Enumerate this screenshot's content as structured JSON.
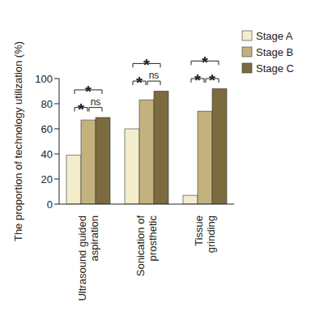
{
  "chart_data": {
    "type": "bar",
    "y_label": "The proportion of technology utilization (%)",
    "categories": [
      "Ultrasound guided aspiration",
      "Sonication of prosthetic",
      "Tissue grinding"
    ],
    "series": [
      {
        "name": "Stage A",
        "color": "#f3edcb",
        "values": [
          39,
          60,
          7
        ]
      },
      {
        "name": "Stage B",
        "color": "#c3b27e",
        "values": [
          67,
          83,
          74
        ]
      },
      {
        "name": "Stage C",
        "color": "#7c6b3f",
        "values": [
          69,
          90,
          92
        ]
      }
    ],
    "ylim": [
      0,
      100
    ],
    "yticks": [
      0,
      20,
      40,
      60,
      80,
      100
    ],
    "grid": false,
    "legend": "upper right",
    "annotations": [
      {
        "category": "Ultrasound guided aspiration",
        "from": "Stage A",
        "to": "Stage B",
        "label": "*"
      },
      {
        "category": "Ultrasound guided aspiration",
        "from": "Stage B",
        "to": "Stage C",
        "label": "ns"
      },
      {
        "category": "Ultrasound guided aspiration",
        "from": "Stage A",
        "to": "Stage C",
        "label": "*"
      },
      {
        "category": "Sonication of prosthetic",
        "from": "Stage A",
        "to": "Stage B",
        "label": "*"
      },
      {
        "category": "Sonication of prosthetic",
        "from": "Stage B",
        "to": "Stage C",
        "label": "ns"
      },
      {
        "category": "Sonication of prosthetic",
        "from": "Stage A",
        "to": "Stage C",
        "label": "*"
      },
      {
        "category": "Tissue grinding",
        "from": "Stage A",
        "to": "Stage B",
        "label": "*"
      },
      {
        "category": "Tissue grinding",
        "from": "Stage B",
        "to": "Stage C",
        "label": "*"
      },
      {
        "category": "Tissue grinding",
        "from": "Stage A",
        "to": "Stage C",
        "label": "*"
      }
    ]
  }
}
